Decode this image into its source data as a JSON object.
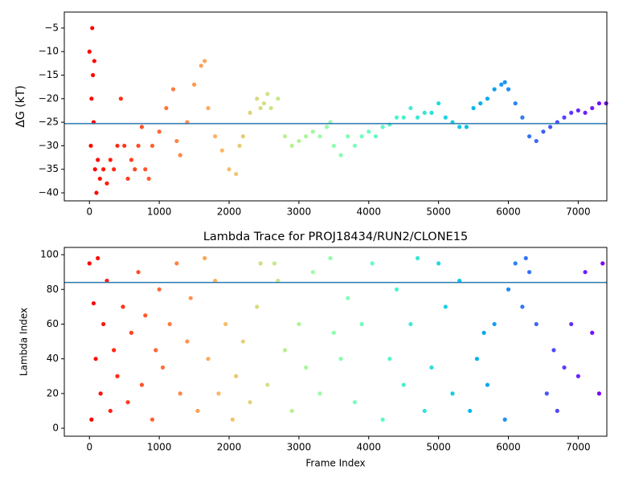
{
  "chart_data": [
    {
      "type": "scatter",
      "ylabel": "ΔG (kT)",
      "colormap": "rainbow_r",
      "x": [
        0,
        20,
        30,
        40,
        50,
        60,
        70,
        80,
        100,
        120,
        150,
        200,
        250,
        300,
        350,
        400,
        450,
        500,
        550,
        600,
        650,
        700,
        750,
        800,
        850,
        900,
        1000,
        1100,
        1200,
        1250,
        1300,
        1400,
        1500,
        1600,
        1650,
        1700,
        1800,
        1900,
        2000,
        2100,
        2150,
        2200,
        2300,
        2400,
        2450,
        2500,
        2550,
        2600,
        2700,
        2800,
        2900,
        3000,
        3100,
        3200,
        3300,
        3400,
        3450,
        3500,
        3600,
        3700,
        3800,
        3900,
        4000,
        4100,
        4200,
        4300,
        4400,
        4500,
        4600,
        4700,
        4800,
        4900,
        5000,
        5100,
        5200,
        5300,
        5400,
        5500,
        5600,
        5700,
        5800,
        5900,
        5950,
        6000,
        6100,
        6200,
        6300,
        6400,
        6500,
        6600,
        6700,
        6800,
        6900,
        7000,
        7100,
        7200,
        7300,
        7400
      ],
      "values": [
        -10,
        -30,
        -20,
        -5,
        -15,
        -25,
        -12,
        -35,
        -40,
        -33,
        -37,
        -35,
        -38,
        -33,
        -35,
        -30,
        -20,
        -30,
        -37,
        -33,
        -35,
        -30,
        -26,
        -35,
        -37,
        -30,
        -27,
        -22,
        -18,
        -29,
        -32,
        -25,
        -17,
        -13,
        -12,
        -22,
        -28,
        -31,
        -35,
        -36,
        -30,
        -28,
        -23,
        -20,
        -22,
        -21,
        -19,
        -22,
        -20,
        -28,
        -30,
        -29,
        -28,
        -27,
        -28,
        -26,
        -25,
        -30,
        -32,
        -28,
        -30,
        -28,
        -27,
        -28,
        -26,
        -25.5,
        -24,
        -24,
        -22,
        -24,
        -23,
        -23,
        -21,
        -24,
        -25,
        -26,
        -26,
        -22,
        -21,
        -20,
        -18,
        -17,
        -16.5,
        -18,
        -21,
        -24,
        -28,
        -29,
        -27,
        -26,
        -25,
        -24,
        -23,
        -22.5,
        -23,
        -22,
        -21,
        -21
      ],
      "hline": -25.3,
      "hline_color": "#2a7ab0",
      "xlim": [
        -360,
        7410
      ],
      "xticks": [
        0,
        1000,
        2000,
        3000,
        4000,
        5000,
        6000,
        7000
      ],
      "ylim": [
        -41.7,
        -1.6
      ],
      "yticks": [
        {
          "value": -40,
          "label": "−40"
        },
        {
          "value": -35,
          "label": "−35"
        },
        {
          "value": -30,
          "label": "−30"
        },
        {
          "value": -25,
          "label": "−25"
        },
        {
          "value": -20,
          "label": "−20"
        },
        {
          "value": -15,
          "label": "−15"
        },
        {
          "value": -10,
          "label": "−10"
        },
        {
          "value": -5,
          "label": "−5"
        }
      ]
    },
    {
      "type": "scatter",
      "title": "Lambda Trace for PROJ18434/RUN2/CLONE15",
      "xlabel": "Frame Index",
      "ylabel": "Lambda Index",
      "colormap": "rainbow_r",
      "x": [
        0,
        30,
        60,
        90,
        120,
        160,
        200,
        250,
        300,
        350,
        400,
        480,
        550,
        600,
        700,
        750,
        800,
        900,
        950,
        1000,
        1050,
        1150,
        1250,
        1300,
        1400,
        1450,
        1550,
        1650,
        1700,
        1800,
        1850,
        1950,
        2050,
        2100,
        2200,
        2300,
        2400,
        2450,
        2550,
        2650,
        2700,
        2800,
        2900,
        3000,
        3100,
        3200,
        3300,
        3450,
        3500,
        3600,
        3700,
        3800,
        3900,
        4050,
        4200,
        4300,
        4400,
        4500,
        4600,
        4700,
        4800,
        4900,
        5000,
        5100,
        5200,
        5300,
        5450,
        5550,
        5650,
        5700,
        5800,
        5950,
        6000,
        6100,
        6200,
        6250,
        6300,
        6400,
        6550,
        6650,
        6700,
        6800,
        6900,
        7000,
        7100,
        7200,
        7300,
        7350
      ],
      "values": [
        95,
        5,
        72,
        40,
        98,
        20,
        60,
        85,
        10,
        45,
        30,
        70,
        15,
        55,
        90,
        25,
        65,
        5,
        45,
        80,
        35,
        60,
        95,
        20,
        50,
        75,
        10,
        98,
        40,
        85,
        20,
        60,
        5,
        30,
        50,
        15,
        70,
        95,
        25,
        95,
        85,
        45,
        10,
        60,
        35,
        90,
        20,
        98,
        55,
        40,
        75,
        15,
        60,
        95,
        5,
        40,
        80,
        25,
        60,
        98,
        10,
        35,
        95,
        70,
        20,
        85,
        10,
        40,
        55,
        25,
        60,
        5,
        80,
        95,
        70,
        98,
        90,
        60,
        20,
        45,
        10,
        35,
        60,
        30,
        90,
        55,
        20,
        95
      ],
      "hline": 84,
      "hline_color": "#2a7ab0",
      "xlim": [
        -360,
        7410
      ],
      "xticks": [
        0,
        1000,
        2000,
        3000,
        4000,
        5000,
        6000,
        7000
      ],
      "ylim": [
        -4.6,
        104.2
      ],
      "yticks": [
        0,
        20,
        40,
        60,
        80,
        100
      ]
    }
  ]
}
